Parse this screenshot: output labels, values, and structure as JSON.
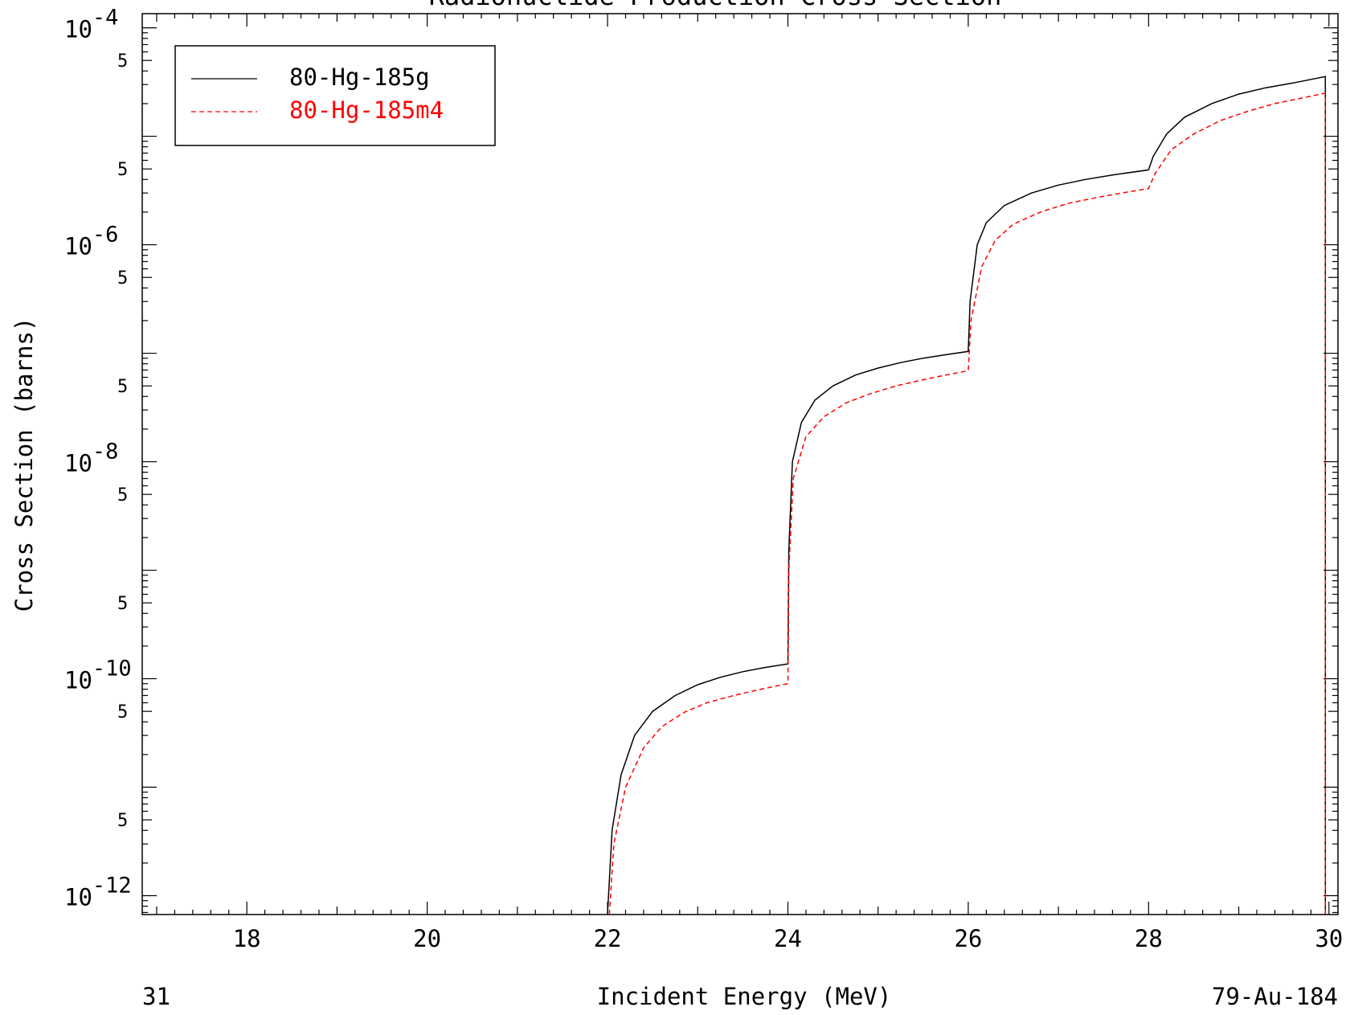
{
  "chart_data": {
    "type": "line",
    "title": "Radionuclide Production Cross Section",
    "xlabel": "Incident Energy (MeV)",
    "ylabel": "Cross Section (barns)",
    "xlim": [
      16.84,
      30.1
    ],
    "ylim": [
      6.7e-13,
      0.000135
    ],
    "yscale": "log",
    "x_ticks": [
      18,
      20,
      22,
      24,
      26,
      28,
      30
    ],
    "y_major_ticks": [
      {
        "value": 1e-12,
        "base": "10",
        "exp": "-12"
      },
      {
        "value": 1e-10,
        "base": "10",
        "exp": "-10"
      },
      {
        "value": 1e-08,
        "base": "10",
        "exp": "-8"
      },
      {
        "value": 1e-06,
        "base": "10",
        "exp": "-6"
      },
      {
        "value": 0.0001,
        "base": "10",
        "exp": "-4"
      }
    ],
    "y_half_labels": [
      {
        "value": 5e-12,
        "label": "5"
      },
      {
        "value": 5e-11,
        "label": "5"
      },
      {
        "value": 5e-10,
        "label": "5"
      },
      {
        "value": 5e-09,
        "label": "5"
      },
      {
        "value": 5e-08,
        "label": "5"
      },
      {
        "value": 5e-07,
        "label": "5"
      },
      {
        "value": 5e-06,
        "label": "5"
      },
      {
        "value": 5e-05,
        "label": "5"
      }
    ],
    "legend": {
      "position": "top-left"
    },
    "series": [
      {
        "name": "80-Hg-185g",
        "color": "#000000",
        "dash": "solid",
        "points": [
          [
            22.0,
            6.7e-13
          ],
          [
            22.05,
            4e-12
          ],
          [
            22.15,
            1.3e-11
          ],
          [
            22.3,
            3e-11
          ],
          [
            22.5,
            5e-11
          ],
          [
            22.75,
            7e-11
          ],
          [
            23.0,
            8.8e-11
          ],
          [
            23.25,
            1.03e-10
          ],
          [
            23.5,
            1.16e-10
          ],
          [
            23.75,
            1.27e-10
          ],
          [
            24.0,
            1.37e-10
          ],
          [
            24.01,
            1.5e-09
          ],
          [
            24.05,
            1e-08
          ],
          [
            24.15,
            2.3e-08
          ],
          [
            24.3,
            3.7e-08
          ],
          [
            24.5,
            5e-08
          ],
          [
            24.75,
            6.3e-08
          ],
          [
            25.0,
            7.3e-08
          ],
          [
            25.25,
            8.2e-08
          ],
          [
            25.5,
            9e-08
          ],
          [
            25.75,
            9.7e-08
          ],
          [
            26.0,
            1.04e-07
          ],
          [
            26.02,
            3e-07
          ],
          [
            26.1,
            1e-06
          ],
          [
            26.2,
            1.6e-06
          ],
          [
            26.4,
            2.3e-06
          ],
          [
            26.7,
            3e-06
          ],
          [
            27.0,
            3.55e-06
          ],
          [
            27.3,
            4e-06
          ],
          [
            27.6,
            4.4e-06
          ],
          [
            28.0,
            4.9e-06
          ],
          [
            28.05,
            6.5e-06
          ],
          [
            28.2,
            1.05e-05
          ],
          [
            28.4,
            1.5e-05
          ],
          [
            28.7,
            2e-05
          ],
          [
            29.0,
            2.45e-05
          ],
          [
            29.3,
            2.8e-05
          ],
          [
            29.6,
            3.1e-05
          ],
          [
            29.96,
            3.55e-05
          ],
          [
            29.96,
            6.7e-13
          ]
        ]
      },
      {
        "name": "80-Hg-185m4",
        "color": "#ff0000",
        "dash": "dashed",
        "points": [
          [
            22.02,
            6.7e-13
          ],
          [
            22.07,
            3e-12
          ],
          [
            22.2,
            1e-11
          ],
          [
            22.4,
            2.3e-11
          ],
          [
            22.6,
            3.6e-11
          ],
          [
            22.85,
            4.9e-11
          ],
          [
            23.1,
            6e-11
          ],
          [
            23.4,
            7e-11
          ],
          [
            23.7,
            8e-11
          ],
          [
            24.0,
            9e-11
          ],
          [
            24.01,
            1e-09
          ],
          [
            24.06,
            7e-09
          ],
          [
            24.2,
            1.7e-08
          ],
          [
            24.4,
            2.6e-08
          ],
          [
            24.65,
            3.5e-08
          ],
          [
            24.9,
            4.2e-08
          ],
          [
            25.2,
            5e-08
          ],
          [
            25.5,
            5.7e-08
          ],
          [
            25.75,
            6.3e-08
          ],
          [
            26.0,
            6.9e-08
          ],
          [
            26.03,
            2e-07
          ],
          [
            26.15,
            6.3e-07
          ],
          [
            26.3,
            1.1e-06
          ],
          [
            26.5,
            1.55e-06
          ],
          [
            26.8,
            2e-06
          ],
          [
            27.1,
            2.4e-06
          ],
          [
            27.4,
            2.7e-06
          ],
          [
            27.7,
            3e-06
          ],
          [
            28.0,
            3.3e-06
          ],
          [
            28.07,
            4.5e-06
          ],
          [
            28.25,
            7.5e-06
          ],
          [
            28.5,
            1.05e-05
          ],
          [
            28.8,
            1.4e-05
          ],
          [
            29.1,
            1.7e-05
          ],
          [
            29.4,
            2e-05
          ],
          [
            29.7,
            2.25e-05
          ],
          [
            29.96,
            2.5e-05
          ],
          [
            29.96,
            6.7e-13
          ]
        ]
      }
    ]
  },
  "footer": {
    "left": "31",
    "right": "79-Au-184"
  }
}
